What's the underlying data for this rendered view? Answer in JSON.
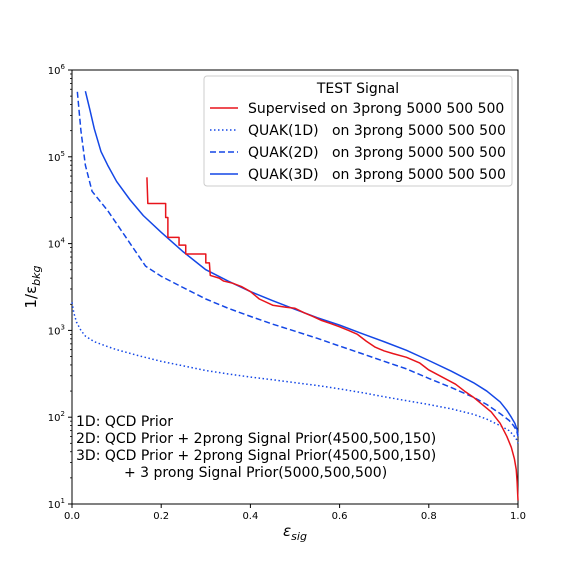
{
  "chart_data": {
    "type": "line",
    "xlabel": "ε",
    "xlabel_sub": "sig",
    "ylabel": "1/ε",
    "ylabel_sub": "bkg",
    "xlim": [
      0.0,
      1.0
    ],
    "ylim": [
      10,
      1000000
    ],
    "yscale": "log",
    "xticks": [
      "0.0",
      "0.2",
      "0.4",
      "0.6",
      "0.8",
      "1.0"
    ],
    "yticks": [
      {
        "base": "10",
        "exp": "1",
        "value": 10
      },
      {
        "base": "10",
        "exp": "2",
        "value": 100
      },
      {
        "base": "10",
        "exp": "3",
        "value": 1000
      },
      {
        "base": "10",
        "exp": "4",
        "value": 10000
      },
      {
        "base": "10",
        "exp": "5",
        "value": 100000
      },
      {
        "base": "10",
        "exp": "6",
        "value": 1000000
      }
    ],
    "grid": false,
    "legend": {
      "title": "TEST Signal",
      "placement": "top-right"
    },
    "series": [
      {
        "name": "Supervised on 3prong 5000 500 500",
        "color": "#e8141b",
        "style": "solid",
        "points": [
          [
            0.168,
            58000
          ],
          [
            0.17,
            29000
          ],
          [
            0.21,
            29000
          ],
          [
            0.21,
            20000
          ],
          [
            0.215,
            20000
          ],
          [
            0.215,
            11800
          ],
          [
            0.24,
            11800
          ],
          [
            0.24,
            9600
          ],
          [
            0.255,
            9600
          ],
          [
            0.255,
            7600
          ],
          [
            0.3,
            7600
          ],
          [
            0.3,
            6000
          ],
          [
            0.308,
            6000
          ],
          [
            0.31,
            4300
          ],
          [
            0.33,
            4000
          ],
          [
            0.34,
            3700
          ],
          [
            0.36,
            3500
          ],
          [
            0.38,
            3200
          ],
          [
            0.4,
            2800
          ],
          [
            0.42,
            2300
          ],
          [
            0.45,
            1950
          ],
          [
            0.48,
            1850
          ],
          [
            0.5,
            1800
          ],
          [
            0.52,
            1600
          ],
          [
            0.54,
            1450
          ],
          [
            0.56,
            1300
          ],
          [
            0.58,
            1200
          ],
          [
            0.6,
            1100
          ],
          [
            0.62,
            1000
          ],
          [
            0.64,
            900
          ],
          [
            0.66,
            750
          ],
          [
            0.68,
            640
          ],
          [
            0.7,
            580
          ],
          [
            0.72,
            540
          ],
          [
            0.75,
            490
          ],
          [
            0.78,
            420
          ],
          [
            0.8,
            350
          ],
          [
            0.83,
            290
          ],
          [
            0.86,
            240
          ],
          [
            0.88,
            200
          ],
          [
            0.9,
            170
          ],
          [
            0.92,
            140
          ],
          [
            0.94,
            115
          ],
          [
            0.96,
            85
          ],
          [
            0.975,
            60
          ],
          [
            0.985,
            45
          ],
          [
            0.992,
            33
          ],
          [
            0.996,
            25
          ],
          [
            0.998,
            18
          ],
          [
            0.999,
            14
          ],
          [
            1.0,
            11
          ]
        ]
      },
      {
        "name": "QUAK(1D)   on 3prong 5000 500 500",
        "color": "#1447e6",
        "style": "dotted",
        "points": [
          [
            0.0,
            2100
          ],
          [
            0.004,
            1600
          ],
          [
            0.01,
            1250
          ],
          [
            0.02,
            1000
          ],
          [
            0.03,
            860
          ],
          [
            0.05,
            740
          ],
          [
            0.08,
            650
          ],
          [
            0.1,
            600
          ],
          [
            0.15,
            510
          ],
          [
            0.2,
            440
          ],
          [
            0.25,
            390
          ],
          [
            0.3,
            345
          ],
          [
            0.35,
            315
          ],
          [
            0.4,
            290
          ],
          [
            0.45,
            270
          ],
          [
            0.5,
            250
          ],
          [
            0.55,
            232
          ],
          [
            0.6,
            212
          ],
          [
            0.65,
            192
          ],
          [
            0.7,
            172
          ],
          [
            0.75,
            155
          ],
          [
            0.8,
            140
          ],
          [
            0.85,
            125
          ],
          [
            0.9,
            108
          ],
          [
            0.93,
            95
          ],
          [
            0.96,
            80
          ],
          [
            0.98,
            70
          ],
          [
            0.99,
            62
          ],
          [
            0.997,
            55
          ],
          [
            1.0,
            50
          ]
        ]
      },
      {
        "name": "QUAK(2D)   on 3prong 5000 500 500",
        "color": "#1447e6",
        "style": "dashed",
        "points": [
          [
            0.012,
            560000
          ],
          [
            0.02,
            200000
          ],
          [
            0.03,
            80000
          ],
          [
            0.045,
            40000
          ],
          [
            0.08,
            24000
          ],
          [
            0.12,
            12000
          ],
          [
            0.165,
            5500
          ],
          [
            0.2,
            4200
          ],
          [
            0.25,
            3100
          ],
          [
            0.3,
            2300
          ],
          [
            0.35,
            1800
          ],
          [
            0.4,
            1450
          ],
          [
            0.45,
            1180
          ],
          [
            0.5,
            980
          ],
          [
            0.55,
            810
          ],
          [
            0.6,
            660
          ],
          [
            0.65,
            540
          ],
          [
            0.7,
            440
          ],
          [
            0.75,
            360
          ],
          [
            0.8,
            280
          ],
          [
            0.85,
            220
          ],
          [
            0.9,
            170
          ],
          [
            0.93,
            140
          ],
          [
            0.96,
            110
          ],
          [
            0.98,
            92
          ],
          [
            0.99,
            80
          ],
          [
            0.997,
            70
          ],
          [
            1.0,
            60
          ]
        ]
      },
      {
        "name": "QUAK(3D)   on 3prong 5000 500 500",
        "color": "#1447e6",
        "style": "solid",
        "points": [
          [
            0.03,
            570000
          ],
          [
            0.04,
            350000
          ],
          [
            0.05,
            210000
          ],
          [
            0.065,
            115000
          ],
          [
            0.08,
            80000
          ],
          [
            0.1,
            52000
          ],
          [
            0.13,
            32000
          ],
          [
            0.16,
            21000
          ],
          [
            0.2,
            13500
          ],
          [
            0.25,
            8000
          ],
          [
            0.3,
            5000
          ],
          [
            0.35,
            3700
          ],
          [
            0.4,
            2800
          ],
          [
            0.45,
            2200
          ],
          [
            0.5,
            1750
          ],
          [
            0.55,
            1400
          ],
          [
            0.6,
            1150
          ],
          [
            0.65,
            920
          ],
          [
            0.7,
            740
          ],
          [
            0.75,
            590
          ],
          [
            0.8,
            450
          ],
          [
            0.85,
            340
          ],
          [
            0.9,
            250
          ],
          [
            0.93,
            200
          ],
          [
            0.96,
            150
          ],
          [
            0.975,
            120
          ],
          [
            0.985,
            100
          ],
          [
            0.993,
            85
          ],
          [
            0.998,
            72
          ],
          [
            1.0,
            62
          ]
        ]
      }
    ],
    "annotations": [
      "1D: QCD Prior",
      "2D: QCD Prior + 2prong Signal Prior(4500,500,150)",
      "3D: QCD Prior + 2prong Signal Prior(4500,500,150)",
      "+ 3 prong Signal Prior(5000,500,500)"
    ]
  }
}
